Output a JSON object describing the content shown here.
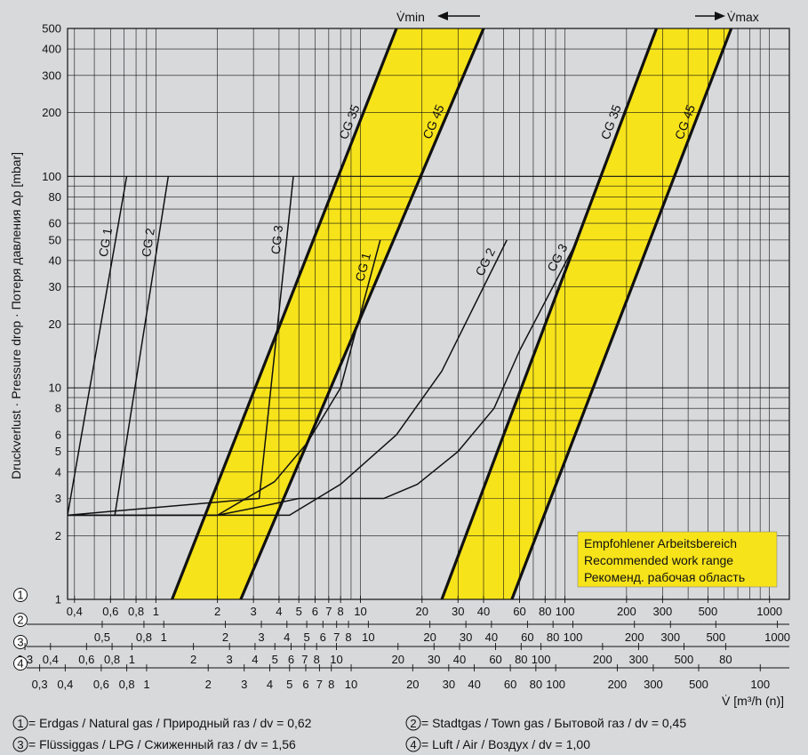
{
  "chart_data": {
    "type": "line",
    "title": "",
    "ylabel": "Druckverlust · Pressure drop · Потеря давления  Δp [mbar]",
    "xlabel": "V̇  [m³/h (n)]",
    "xscale": "log",
    "yscale": "log",
    "xlim": [
      0.37,
      1250
    ],
    "ylim": [
      1,
      500
    ],
    "y_ticks": [
      1,
      2,
      3,
      4,
      5,
      6,
      8,
      10,
      20,
      30,
      40,
      50,
      60,
      80,
      100,
      200,
      300,
      400,
      500
    ],
    "vmin_label": "V̇min",
    "vmax_label": "V̇max",
    "legend_box": [
      "Empfohlener Arbeitsbereich",
      "Recommended work range",
      "Рекоменд. рабочая область"
    ],
    "x_scales": [
      {
        "marker": "1",
        "ticks": [
          "0,4",
          "0,6",
          "0,8",
          "1",
          "2",
          "3",
          "4",
          "5",
          "6",
          "7",
          "8",
          "10",
          "20",
          "30",
          "40",
          "60",
          "80",
          "100",
          "200",
          "300",
          "500",
          "1000"
        ]
      },
      {
        "marker": "2",
        "ticks": [
          "0,5",
          "0,8",
          "1",
          "2",
          "3",
          "4",
          "5",
          "6",
          "7",
          "8",
          "10",
          "20",
          "30",
          "40",
          "60",
          "80",
          "100",
          "200",
          "300",
          "500",
          "1000"
        ]
      },
      {
        "marker": "3",
        "ticks": [
          "0,3",
          "0,4",
          "0,6",
          "0,8",
          "1",
          "2",
          "3",
          "4",
          "5",
          "6",
          "7",
          "8",
          "10",
          "20",
          "30",
          "40",
          "60",
          "80",
          "100",
          "200",
          "300",
          "500",
          "80"
        ]
      },
      {
        "marker": "4",
        "ticks": [
          "0,3",
          "0,4",
          "0,6",
          "0,8",
          "1",
          "2",
          "3",
          "4",
          "5",
          "6",
          "7",
          "8",
          "10",
          "20",
          "30",
          "40",
          "60",
          "80",
          "100",
          "200",
          "300",
          "500",
          "100"
        ]
      }
    ],
    "footnotes": [
      {
        "marker": "1",
        "text": " = Erdgas / Natural gas / Природный газ / dv = 0,62"
      },
      {
        "marker": "2",
        "text": " = Stadtgas / Town gas / Бытовой газ / dv = 0,45"
      },
      {
        "marker": "3",
        "text": " = Flüssiggas / LPG / Сжиженный  газ / dv = 1,56"
      },
      {
        "marker": "4",
        "text": " = Luft / Air / Воздух / dv = 1,00"
      }
    ],
    "bands": [
      {
        "points": [
          [
            1.2,
            1
          ],
          [
            15,
            500
          ],
          [
            40,
            500
          ],
          [
            2.6,
            1
          ]
        ]
      },
      {
        "points": [
          [
            25,
            1
          ],
          [
            280,
            500
          ],
          [
            650,
            500
          ],
          [
            55,
            1
          ]
        ]
      }
    ],
    "series": [
      {
        "name": "CG 35",
        "points": [
          [
            1.2,
            1
          ],
          [
            15,
            500
          ]
        ],
        "heavy": true
      },
      {
        "name": "CG 45",
        "points": [
          [
            2.6,
            1
          ],
          [
            40,
            500
          ]
        ],
        "heavy": true
      },
      {
        "name": "CG 35",
        "points": [
          [
            25,
            1
          ],
          [
            280,
            500
          ]
        ],
        "heavy": true
      },
      {
        "name": "CG 45",
        "points": [
          [
            55,
            1
          ],
          [
            650,
            500
          ]
        ],
        "heavy": true
      },
      {
        "name": "CG 1",
        "points": [
          [
            0.37,
            2.5
          ],
          [
            0.72,
            100
          ]
        ]
      },
      {
        "name": "CG 2",
        "points": [
          [
            0.63,
            2.5
          ],
          [
            1.15,
            100
          ]
        ]
      },
      {
        "name": "CG 3",
        "points": [
          [
            0.37,
            2.5
          ],
          [
            3.2,
            3
          ],
          [
            4.7,
            100
          ]
        ]
      },
      {
        "name": "CG 1",
        "points": [
          [
            0.37,
            2.5
          ],
          [
            2,
            2.5
          ],
          [
            3.8,
            3.6
          ],
          [
            5.5,
            5.5
          ],
          [
            8,
            10
          ],
          [
            12.5,
            50
          ]
        ]
      },
      {
        "name": "CG 2",
        "points": [
          [
            0.37,
            2.5
          ],
          [
            4.5,
            2.5
          ],
          [
            8,
            3.5
          ],
          [
            15,
            6
          ],
          [
            25,
            12
          ],
          [
            52,
            50
          ]
        ]
      },
      {
        "name": "CG 3",
        "points": [
          [
            0.37,
            2.5
          ],
          [
            2,
            2.5
          ],
          [
            3,
            2.7
          ],
          [
            5,
            3
          ],
          [
            13,
            3
          ],
          [
            19,
            3.5
          ],
          [
            30,
            5
          ],
          [
            45,
            8
          ],
          [
            60,
            15
          ],
          [
            115,
            50
          ]
        ]
      }
    ]
  }
}
